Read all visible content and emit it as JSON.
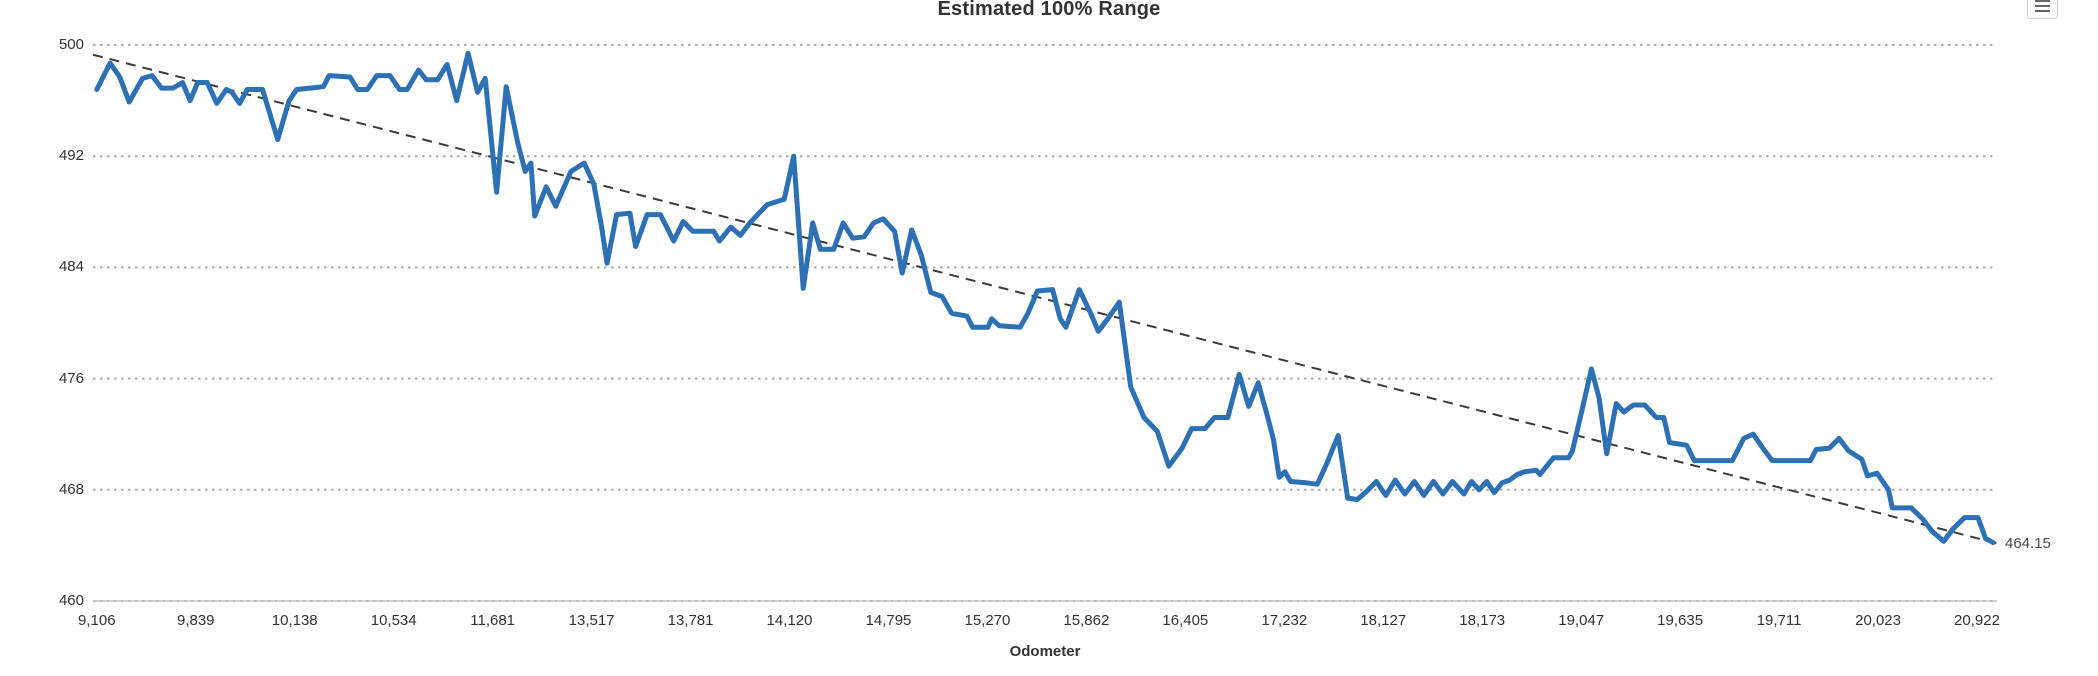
{
  "header": {
    "title": "Estimated 100% Range"
  },
  "icons": {
    "export_menu": "hamburger-three-lines"
  },
  "colors": {
    "series_blue": "#2d70b3",
    "trend_dash": "#3a3a3a",
    "gridline": "#a9a9a9",
    "axis_line": "#c4c4c4",
    "text": "#333333",
    "annotation_text": "#4a4a4a",
    "background": "#ffffff"
  },
  "chart_data": {
    "type": "line",
    "title": "Estimated 100% Range",
    "xlabel": "Odometer",
    "ylabel": "",
    "ylim": [
      460,
      500
    ],
    "y_ticks": [
      500,
      492,
      484,
      476,
      468,
      460
    ],
    "grid": "dotted horizontal gridlines at each y tick, solid x axis line",
    "legend": "none",
    "x_tick_labels": [
      "9,106",
      "9,839",
      "10,138",
      "10,534",
      "11,681",
      "13,517",
      "13,781",
      "14,120",
      "14,795",
      "15,270",
      "15,862",
      "16,405",
      "17,232",
      "18,127",
      "18,173",
      "19,047",
      "19,635",
      "19,711",
      "20,023",
      "20,922"
    ],
    "trend": {
      "style": "dashed",
      "start_value": 499.3,
      "end_value": 464.15,
      "end_label": "464.15"
    },
    "series": [
      {
        "name": "Estimated 100% Range",
        "x_unit": "fraction of x-axis span (odometer values between ticks are unlabeled)",
        "points": [
          [
            0.002,
            496.8
          ],
          [
            0.009,
            498.7
          ],
          [
            0.014,
            497.7
          ],
          [
            0.019,
            495.9
          ],
          [
            0.026,
            497.6
          ],
          [
            0.031,
            497.8
          ],
          [
            0.036,
            496.9
          ],
          [
            0.042,
            496.9
          ],
          [
            0.047,
            497.3
          ],
          [
            0.051,
            496.0
          ],
          [
            0.055,
            497.3
          ],
          [
            0.06,
            497.3
          ],
          [
            0.065,
            495.8
          ],
          [
            0.07,
            496.8
          ],
          [
            0.073,
            496.6
          ],
          [
            0.077,
            495.8
          ],
          [
            0.081,
            496.8
          ],
          [
            0.089,
            496.8
          ],
          [
            0.097,
            493.2
          ],
          [
            0.103,
            496.0
          ],
          [
            0.107,
            496.8
          ],
          [
            0.114,
            496.9
          ],
          [
            0.121,
            497.0
          ],
          [
            0.124,
            497.8
          ],
          [
            0.135,
            497.7
          ],
          [
            0.139,
            496.8
          ],
          [
            0.144,
            496.8
          ],
          [
            0.149,
            497.8
          ],
          [
            0.156,
            497.8
          ],
          [
            0.161,
            496.8
          ],
          [
            0.165,
            496.8
          ],
          [
            0.171,
            498.2
          ],
          [
            0.175,
            497.5
          ],
          [
            0.181,
            497.5
          ],
          [
            0.186,
            498.6
          ],
          [
            0.191,
            496.0
          ],
          [
            0.197,
            499.4
          ],
          [
            0.202,
            496.6
          ],
          [
            0.206,
            497.6
          ],
          [
            0.212,
            489.4
          ],
          [
            0.217,
            497.0
          ],
          [
            0.223,
            493.0
          ],
          [
            0.227,
            490.9
          ],
          [
            0.23,
            491.5
          ],
          [
            0.232,
            487.7
          ],
          [
            0.238,
            489.8
          ],
          [
            0.243,
            488.4
          ],
          [
            0.251,
            490.9
          ],
          [
            0.258,
            491.5
          ],
          [
            0.263,
            490.0
          ],
          [
            0.267,
            487.0
          ],
          [
            0.27,
            484.3
          ],
          [
            0.275,
            487.8
          ],
          [
            0.282,
            487.9
          ],
          [
            0.285,
            485.5
          ],
          [
            0.291,
            487.8
          ],
          [
            0.298,
            487.8
          ],
          [
            0.305,
            485.9
          ],
          [
            0.31,
            487.3
          ],
          [
            0.315,
            486.6
          ],
          [
            0.326,
            486.6
          ],
          [
            0.329,
            485.9
          ],
          [
            0.335,
            486.9
          ],
          [
            0.34,
            486.3
          ],
          [
            0.345,
            487.2
          ],
          [
            0.354,
            488.5
          ],
          [
            0.363,
            488.9
          ],
          [
            0.368,
            492.0
          ],
          [
            0.373,
            482.5
          ],
          [
            0.378,
            487.2
          ],
          [
            0.382,
            485.3
          ],
          [
            0.389,
            485.3
          ],
          [
            0.394,
            487.2
          ],
          [
            0.399,
            486.1
          ],
          [
            0.405,
            486.2
          ],
          [
            0.41,
            487.2
          ],
          [
            0.415,
            487.5
          ],
          [
            0.421,
            486.6
          ],
          [
            0.425,
            483.6
          ],
          [
            0.43,
            486.7
          ],
          [
            0.435,
            484.9
          ],
          [
            0.44,
            482.2
          ],
          [
            0.446,
            481.9
          ],
          [
            0.451,
            480.7
          ],
          [
            0.459,
            480.5
          ],
          [
            0.462,
            479.7
          ],
          [
            0.47,
            479.7
          ],
          [
            0.472,
            480.3
          ],
          [
            0.476,
            479.8
          ],
          [
            0.487,
            479.7
          ],
          [
            0.491,
            480.7
          ],
          [
            0.496,
            482.3
          ],
          [
            0.504,
            482.4
          ],
          [
            0.508,
            480.3
          ],
          [
            0.511,
            479.7
          ],
          [
            0.518,
            482.4
          ],
          [
            0.524,
            480.7
          ],
          [
            0.528,
            479.4
          ],
          [
            0.533,
            480.3
          ],
          [
            0.539,
            481.5
          ],
          [
            0.545,
            475.4
          ],
          [
            0.552,
            473.2
          ],
          [
            0.559,
            472.2
          ],
          [
            0.565,
            469.7
          ],
          [
            0.572,
            471.0
          ],
          [
            0.577,
            472.4
          ],
          [
            0.584,
            472.4
          ],
          [
            0.589,
            473.2
          ],
          [
            0.596,
            473.2
          ],
          [
            0.602,
            476.3
          ],
          [
            0.607,
            474.0
          ],
          [
            0.612,
            475.7
          ],
          [
            0.617,
            473.2
          ],
          [
            0.62,
            471.6
          ],
          [
            0.623,
            468.9
          ],
          [
            0.626,
            469.3
          ],
          [
            0.629,
            468.6
          ],
          [
            0.637,
            468.5
          ],
          [
            0.643,
            468.4
          ],
          [
            0.648,
            469.9
          ],
          [
            0.654,
            471.9
          ],
          [
            0.659,
            467.4
          ],
          [
            0.664,
            467.3
          ],
          [
            0.669,
            467.9
          ],
          [
            0.674,
            468.6
          ],
          [
            0.679,
            467.6
          ],
          [
            0.684,
            468.7
          ],
          [
            0.689,
            467.7
          ],
          [
            0.694,
            468.6
          ],
          [
            0.699,
            467.6
          ],
          [
            0.704,
            468.6
          ],
          [
            0.709,
            467.7
          ],
          [
            0.714,
            468.6
          ],
          [
            0.72,
            467.7
          ],
          [
            0.724,
            468.6
          ],
          [
            0.728,
            468.0
          ],
          [
            0.732,
            468.6
          ],
          [
            0.736,
            467.8
          ],
          [
            0.74,
            468.5
          ],
          [
            0.744,
            468.7
          ],
          [
            0.748,
            469.1
          ],
          [
            0.752,
            469.3
          ],
          [
            0.758,
            469.4
          ],
          [
            0.76,
            469.1
          ],
          [
            0.764,
            469.8
          ],
          [
            0.767,
            470.3
          ],
          [
            0.775,
            470.3
          ],
          [
            0.777,
            470.8
          ],
          [
            0.782,
            473.7
          ],
          [
            0.787,
            476.7
          ],
          [
            0.791,
            474.6
          ],
          [
            0.795,
            470.6
          ],
          [
            0.8,
            474.2
          ],
          [
            0.804,
            473.6
          ],
          [
            0.809,
            474.1
          ],
          [
            0.815,
            474.1
          ],
          [
            0.821,
            473.2
          ],
          [
            0.825,
            473.2
          ],
          [
            0.828,
            471.4
          ],
          [
            0.837,
            471.2
          ],
          [
            0.841,
            470.1
          ],
          [
            0.861,
            470.1
          ],
          [
            0.867,
            471.7
          ],
          [
            0.872,
            472.0
          ],
          [
            0.877,
            471.0
          ],
          [
            0.882,
            470.1
          ],
          [
            0.902,
            470.1
          ],
          [
            0.905,
            470.9
          ],
          [
            0.912,
            471.0
          ],
          [
            0.917,
            471.7
          ],
          [
            0.922,
            470.8
          ],
          [
            0.929,
            470.2
          ],
          [
            0.932,
            469.0
          ],
          [
            0.937,
            469.2
          ],
          [
            0.943,
            468.0
          ],
          [
            0.945,
            466.7
          ],
          [
            0.955,
            466.7
          ],
          [
            0.961,
            465.9
          ],
          [
            0.966,
            465.0
          ],
          [
            0.972,
            464.3
          ],
          [
            0.977,
            465.2
          ],
          [
            0.983,
            466.0
          ],
          [
            0.99,
            466.0
          ],
          [
            0.994,
            464.5
          ],
          [
            0.998,
            464.2
          ]
        ]
      }
    ]
  }
}
